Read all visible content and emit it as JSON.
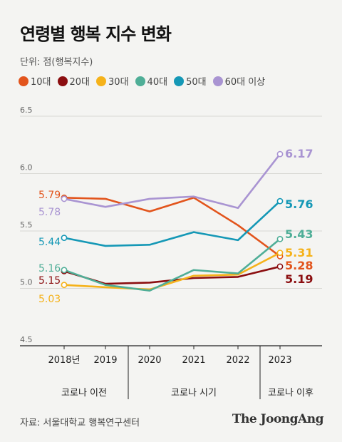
{
  "title": "연령별 행복 지수 변화",
  "unit_label": "단위: 점(행복지수)",
  "source": "자료: 서울대학교 행복연구센터",
  "brand": "The JoongAng",
  "chart_data": {
    "type": "line",
    "x": [
      "2018년",
      "2019",
      "2020",
      "2021",
      "2022",
      "2023"
    ],
    "ylim": [
      4.5,
      6.5
    ],
    "yticks": [
      "6.5",
      "6.0",
      "5.5",
      "5.0",
      "4.5"
    ],
    "grid": true,
    "legend_position": "top",
    "periods": [
      {
        "label": "코로나 이전",
        "from": 0,
        "to": 1
      },
      {
        "label": "코로나 시기",
        "from": 2,
        "to": 4
      },
      {
        "label": "코로나 이후",
        "from": 5,
        "to": 5
      }
    ],
    "series": [
      {
        "name": "10대",
        "color": "#e2541c",
        "values": [
          5.79,
          5.78,
          5.67,
          5.79,
          5.55,
          5.28
        ],
        "start_label": "5.79",
        "end_label": "5.28"
      },
      {
        "name": "20대",
        "color": "#8b0e10",
        "values": [
          5.15,
          5.04,
          5.05,
          5.09,
          5.1,
          5.19
        ],
        "start_label": "5.15",
        "end_label": "5.19"
      },
      {
        "name": "30대",
        "color": "#f5b21a",
        "values": [
          5.03,
          5.01,
          4.99,
          5.11,
          5.12,
          5.31
        ],
        "start_label": "5.03",
        "end_label": "5.31"
      },
      {
        "name": "40대",
        "color": "#4fae97",
        "values": [
          5.16,
          5.03,
          4.98,
          5.16,
          5.13,
          5.43
        ],
        "start_label": "5.16",
        "end_label": "5.43"
      },
      {
        "name": "50대",
        "color": "#1598b6",
        "values": [
          5.44,
          5.37,
          5.38,
          5.49,
          5.42,
          5.76
        ],
        "start_label": "5.44",
        "end_label": "5.76"
      },
      {
        "name": "60대 이상",
        "color": "#a994d2",
        "values": [
          5.78,
          5.71,
          5.78,
          5.8,
          5.7,
          6.17
        ],
        "start_label": "5.78",
        "end_label": "6.17"
      }
    ]
  }
}
